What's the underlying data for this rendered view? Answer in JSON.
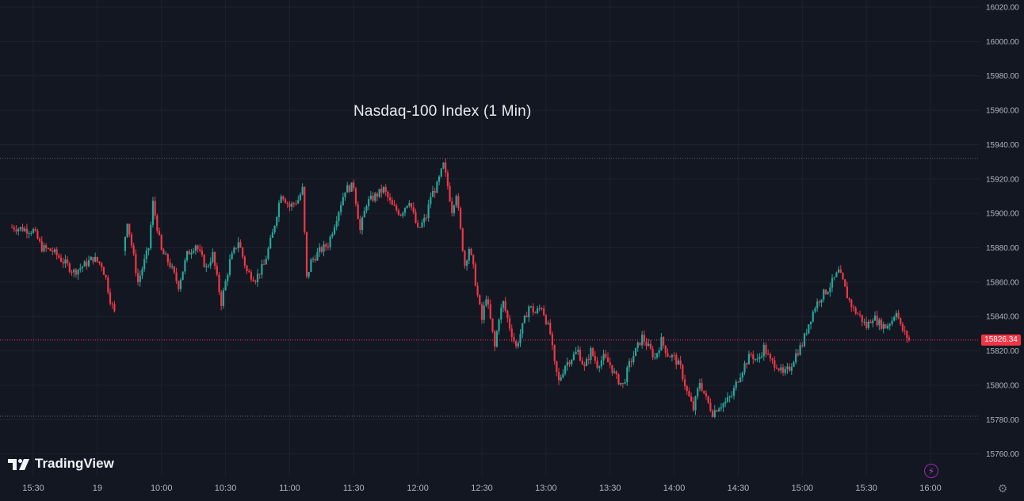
{
  "title": "Nasdaq-100 Index (1 Min)",
  "brand": {
    "name": "TradingView"
  },
  "last_price_label": "15826.34",
  "icons": {
    "alert": "lightning-bolt-icon",
    "settings": "gear-icon"
  },
  "colors": {
    "background": "#131722",
    "up": "#26a69a",
    "down": "#f23645",
    "grid": "#1e222d",
    "text": "#b2b5be"
  },
  "chart_data": {
    "type": "candlestick",
    "title": "Nasdaq-100 Index (1 Min)",
    "y_ticks": [
      15760,
      15780,
      15800,
      15820,
      15840,
      15860,
      15880,
      15900,
      15920,
      15940,
      15960,
      15980,
      16000,
      16020
    ],
    "y_tick_labels": [
      "15760.00",
      "15780.00",
      "15800.00",
      "15820.00",
      "15840.00",
      "15860.00",
      "15880.00",
      "15900.00",
      "15920.00",
      "15940.00",
      "15960.00",
      "15980.00",
      "16000.00",
      "16020.00"
    ],
    "ylim": [
      15752,
      16022
    ],
    "x_ticks": [
      {
        "label": "15:30",
        "t": 0
      },
      {
        "label": "19",
        "t": 30
      },
      {
        "label": "10:00",
        "t": 60
      },
      {
        "label": "10:30",
        "t": 90
      },
      {
        "label": "11:00",
        "t": 120
      },
      {
        "label": "11:30",
        "t": 150
      },
      {
        "label": "12:00",
        "t": 180
      },
      {
        "label": "12:30",
        "t": 210
      },
      {
        "label": "13:00",
        "t": 240
      },
      {
        "label": "13:30",
        "t": 270
      },
      {
        "label": "14:00",
        "t": 300
      },
      {
        "label": "14:30",
        "t": 330
      },
      {
        "label": "15:00",
        "t": 360
      },
      {
        "label": "15:30",
        "t": 390
      },
      {
        "label": "16:00",
        "t": 420
      }
    ],
    "reference_lines": {
      "high": 15932,
      "last": 15826.34,
      "low": 15782
    },
    "close_path": [
      [
        -10,
        15892
      ],
      [
        0,
        15890
      ],
      [
        4,
        15880
      ],
      [
        9,
        15878
      ],
      [
        14,
        15872
      ],
      [
        19,
        15866
      ],
      [
        24,
        15870
      ],
      [
        28,
        15874
      ],
      [
        32,
        15870
      ],
      [
        34,
        15862
      ],
      [
        36,
        15850
      ],
      [
        38,
        15842
      ],
      [
        44,
        15896
      ],
      [
        49,
        15860
      ],
      [
        54,
        15880
      ],
      [
        56,
        15906
      ],
      [
        60,
        15878
      ],
      [
        64,
        15870
      ],
      [
        68,
        15858
      ],
      [
        72,
        15876
      ],
      [
        76,
        15882
      ],
      [
        81,
        15868
      ],
      [
        84,
        15876
      ],
      [
        88,
        15848
      ],
      [
        92,
        15872
      ],
      [
        96,
        15884
      ],
      [
        100,
        15866
      ],
      [
        104,
        15862
      ],
      [
        108,
        15870
      ],
      [
        112,
        15888
      ],
      [
        116,
        15912
      ],
      [
        120,
        15904
      ],
      [
        124,
        15908
      ],
      [
        126,
        15914
      ],
      [
        128,
        15862
      ],
      [
        130,
        15872
      ],
      [
        134,
        15878
      ],
      [
        138,
        15882
      ],
      [
        142,
        15898
      ],
      [
        146,
        15914
      ],
      [
        150,
        15916
      ],
      [
        153,
        15890
      ],
      [
        156,
        15906
      ],
      [
        160,
        15910
      ],
      [
        164,
        15914
      ],
      [
        168,
        15904
      ],
      [
        172,
        15900
      ],
      [
        176,
        15908
      ],
      [
        180,
        15890
      ],
      [
        184,
        15898
      ],
      [
        186,
        15910
      ],
      [
        189,
        15916
      ],
      [
        192,
        15928
      ],
      [
        194,
        15916
      ],
      [
        196,
        15902
      ],
      [
        198,
        15912
      ],
      [
        200,
        15890
      ],
      [
        202,
        15870
      ],
      [
        204,
        15880
      ],
      [
        206,
        15868
      ],
      [
        208,
        15852
      ],
      [
        210,
        15838
      ],
      [
        212,
        15852
      ],
      [
        214,
        15838
      ],
      [
        216,
        15822
      ],
      [
        218,
        15840
      ],
      [
        220,
        15848
      ],
      [
        223,
        15834
      ],
      [
        226,
        15822
      ],
      [
        229,
        15834
      ],
      [
        232,
        15846
      ],
      [
        235,
        15842
      ],
      [
        238,
        15846
      ],
      [
        240,
        15838
      ],
      [
        242,
        15830
      ],
      [
        244,
        15812
      ],
      [
        246,
        15802
      ],
      [
        249,
        15812
      ],
      [
        252,
        15816
      ],
      [
        255,
        15820
      ],
      [
        258,
        15810
      ],
      [
        261,
        15820
      ],
      [
        264,
        15812
      ],
      [
        267,
        15816
      ],
      [
        270,
        15812
      ],
      [
        273,
        15804
      ],
      [
        276,
        15800
      ],
      [
        279,
        15812
      ],
      [
        282,
        15820
      ],
      [
        285,
        15828
      ],
      [
        288,
        15822
      ],
      [
        291,
        15816
      ],
      [
        294,
        15826
      ],
      [
        297,
        15818
      ],
      [
        300,
        15816
      ],
      [
        303,
        15810
      ],
      [
        306,
        15796
      ],
      [
        309,
        15786
      ],
      [
        312,
        15802
      ],
      [
        315,
        15792
      ],
      [
        318,
        15784
      ],
      [
        321,
        15788
      ],
      [
        324,
        15790
      ],
      [
        327,
        15794
      ],
      [
        330,
        15804
      ],
      [
        333,
        15812
      ],
      [
        336,
        15818
      ],
      [
        339,
        15814
      ],
      [
        342,
        15822
      ],
      [
        345,
        15814
      ],
      [
        348,
        15812
      ],
      [
        351,
        15806
      ],
      [
        354,
        15810
      ],
      [
        357,
        15818
      ],
      [
        360,
        15824
      ],
      [
        363,
        15836
      ],
      [
        366,
        15846
      ],
      [
        369,
        15852
      ],
      [
        372,
        15856
      ],
      [
        375,
        15862
      ],
      [
        377,
        15866
      ],
      [
        379,
        15860
      ],
      [
        381,
        15852
      ],
      [
        384,
        15844
      ],
      [
        387,
        15840
      ],
      [
        390,
        15834
      ],
      [
        393,
        15840
      ],
      [
        396,
        15836
      ],
      [
        399,
        15834
      ],
      [
        402,
        15838
      ],
      [
        404,
        15844
      ],
      [
        406,
        15834
      ],
      [
        408,
        15830
      ],
      [
        410,
        15826.34
      ]
    ],
    "gaps": [
      {
        "from": 38,
        "to": 43
      }
    ]
  }
}
